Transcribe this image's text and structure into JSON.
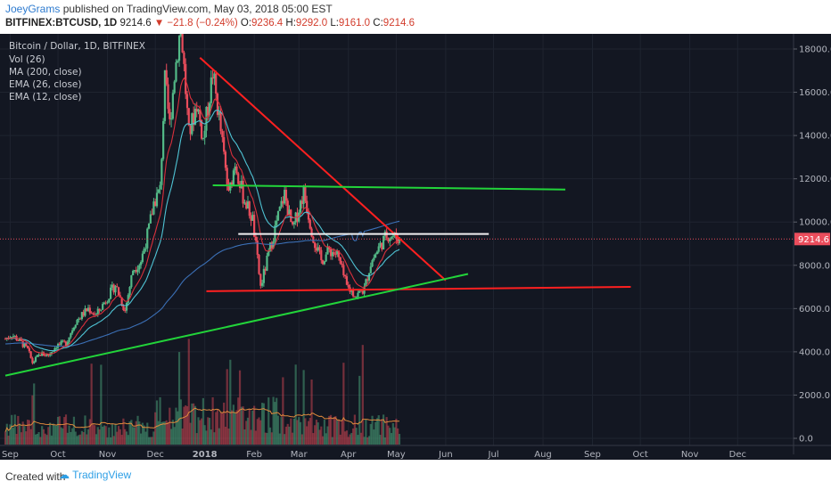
{
  "header": {
    "user": "JoeyGrams",
    "published_text": "published on TradingView.com, May 03, 2018 05:00 EST",
    "symbol": "BITFINEX:BTCUSD, 1D",
    "last": "9214.6",
    "change": "▼ −21.8 (−0.24%)",
    "o_label": "O:",
    "o_value": "9236.4",
    "h_label": "H:",
    "h_value": "9292.0",
    "l_label": "L:",
    "l_value": "9161.0",
    "c_label": "C:",
    "c_value": "9214.6"
  },
  "footer": {
    "created_with": "Created with",
    "brand": "TradingView"
  },
  "chart_data": {
    "type": "line",
    "title": "Bitcoin / Dollar, 1D, BITFINEX",
    "indicators": [
      "Vol (26)",
      "MA (200, close)",
      "EMA (26, close)",
      "EMA (12, close)"
    ],
    "price_label": "9214.6",
    "y_ticks": [
      "18000.0",
      "16000.0",
      "14000.0",
      "12000.0",
      "10000.0",
      "8000.0",
      "6000.0",
      "4000.0",
      "2000.0",
      "0.0"
    ],
    "x_ticks": [
      "Sep",
      "Oct",
      "Nov",
      "Dec",
      "2018",
      "Feb",
      "Mar",
      "Apr",
      "May",
      "Jun",
      "Jul",
      "Aug",
      "Sep",
      "Oct",
      "Nov",
      "Dec"
    ],
    "ylim": [
      0,
      19000
    ],
    "colors": {
      "bg": "#131722",
      "up": "#53b987",
      "down": "#eb4d5c",
      "trend_red": "#ff2020",
      "trend_green": "#22d43a",
      "level_white": "#f0f0f0",
      "ema26": "#4fc3d4",
      "ema12": "#d8303c",
      "ma200": "#3b6fb5",
      "vol_ma": "#e08a3c"
    },
    "series": [
      {
        "name": "BTCUSD close",
        "points": [
          [
            "2017-08-29",
            4600
          ],
          [
            "2017-09-02",
            4800
          ],
          [
            "2017-09-07",
            4500
          ],
          [
            "2017-09-12",
            4100
          ],
          [
            "2017-09-15",
            3500
          ],
          [
            "2017-09-20",
            3900
          ],
          [
            "2017-09-25",
            3850
          ],
          [
            "2017-09-30",
            4300
          ],
          [
            "2017-10-06",
            4400
          ],
          [
            "2017-10-12",
            5400
          ],
          [
            "2017-10-16",
            5700
          ],
          [
            "2017-10-20",
            6000
          ],
          [
            "2017-10-25",
            5700
          ],
          [
            "2017-10-31",
            6400
          ],
          [
            "2017-11-06",
            7100
          ],
          [
            "2017-11-12",
            5900
          ],
          [
            "2017-11-17",
            7800
          ],
          [
            "2017-11-22",
            8200
          ],
          [
            "2017-11-27",
            9700
          ],
          [
            "2017-11-30",
            10900
          ],
          [
            "2017-12-04",
            11500
          ],
          [
            "2017-12-07",
            16500
          ],
          [
            "2017-12-10",
            14500
          ],
          [
            "2017-12-13",
            16800
          ],
          [
            "2017-12-17",
            19200
          ],
          [
            "2017-12-22",
            14000
          ],
          [
            "2017-12-27",
            15500
          ],
          [
            "2017-12-31",
            13800
          ],
          [
            "2018-01-06",
            16900
          ],
          [
            "2018-01-10",
            14800
          ],
          [
            "2018-01-16",
            11200
          ],
          [
            "2018-01-20",
            12800
          ],
          [
            "2018-01-25",
            11200
          ],
          [
            "2018-01-31",
            10100
          ],
          [
            "2018-02-05",
            7000
          ],
          [
            "2018-02-10",
            8500
          ],
          [
            "2018-02-15",
            10000
          ],
          [
            "2018-02-20",
            11300
          ],
          [
            "2018-02-25",
            9600
          ],
          [
            "2018-03-04",
            11400
          ],
          [
            "2018-03-10",
            9300
          ],
          [
            "2018-03-15",
            8200
          ],
          [
            "2018-03-20",
            8700
          ],
          [
            "2018-03-25",
            8500
          ],
          [
            "2018-03-31",
            7000
          ],
          [
            "2018-04-06",
            6600
          ],
          [
            "2018-04-11",
            6900
          ],
          [
            "2018-04-15",
            8100
          ],
          [
            "2018-04-20",
            8800
          ],
          [
            "2018-04-25",
            9400
          ],
          [
            "2018-04-29",
            9350
          ],
          [
            "2018-05-03",
            9215
          ]
        ]
      }
    ],
    "trendlines": [
      {
        "name": "descending resistance",
        "from": [
          "2017-12-29",
          17600
        ],
        "to": [
          "2018-06-01",
          7300
        ]
      },
      {
        "name": "upper horizontal",
        "from": [
          "2018-01-06",
          11700
        ],
        "to": [
          "2018-08-15",
          11500
        ]
      },
      {
        "name": "resistance level",
        "from": [
          "2018-01-22",
          9450
        ],
        "to": [
          "2018-06-28",
          9450
        ]
      },
      {
        "name": "support level",
        "from": [
          "2018-01-02",
          6800
        ],
        "to": [
          "2018-09-25",
          7000
        ]
      },
      {
        "name": "ascending support",
        "from": [
          "2017-08-29",
          2900
        ],
        "to": [
          "2018-06-15",
          7600
        ]
      }
    ]
  }
}
